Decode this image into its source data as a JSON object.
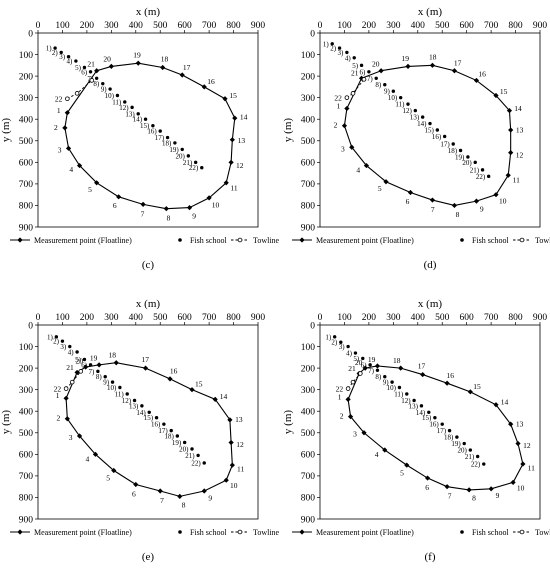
{
  "figure": {
    "x_axis_label": "x (m)",
    "y_axis_label": "y (m)",
    "legend": {
      "floatline": "Measurement point (Floatline)",
      "fish": "Fish school",
      "towline": "Towline"
    },
    "colors": {
      "ink": "#000000",
      "background": "#ffffff"
    }
  },
  "chart_data": [
    {
      "type": "scatter",
      "panel_label": "(c)",
      "xlim": [
        0,
        900
      ],
      "ylim": [
        900,
        0
      ],
      "x_ticks_step": 100,
      "y_ticks_step": 100,
      "legend_position": "bottom",
      "series": [
        {
          "name": "Measurement point (Floatline)",
          "style": "solid-line-diamond",
          "labels": [
            "1",
            "2",
            "3",
            "4",
            "5",
            "6",
            "7",
            "8",
            "9",
            "10",
            "11",
            "12",
            "13",
            "14",
            "15",
            "16",
            "17",
            "18",
            "19",
            "20",
            "21"
          ],
          "x": [
            120,
            110,
            125,
            170,
            240,
            330,
            430,
            525,
            620,
            700,
            770,
            790,
            795,
            805,
            765,
            680,
            590,
            510,
            410,
            300,
            240
          ],
          "y": [
            370,
            440,
            535,
            615,
            695,
            760,
            795,
            815,
            810,
            765,
            695,
            600,
            495,
            395,
            305,
            250,
            195,
            160,
            140,
            155,
            175
          ]
        },
        {
          "name": "Fish school",
          "style": "filled-circle",
          "labels": [
            "1)",
            "2)",
            "3)",
            "4)",
            "5)",
            "6)",
            "7)",
            "8)",
            "9)",
            "10)",
            "11)",
            "12)",
            "13)",
            "14)",
            "15)",
            "16)",
            "17)",
            "18)",
            "19)",
            "20)",
            "21)",
            "22)"
          ],
          "x": [
            70,
            95,
            125,
            155,
            190,
            215,
            240,
            265,
            295,
            325,
            355,
            385,
            410,
            440,
            470,
            500,
            530,
            560,
            590,
            615,
            645,
            670
          ],
          "y": [
            70,
            90,
            110,
            130,
            160,
            180,
            210,
            235,
            260,
            290,
            320,
            345,
            375,
            400,
            430,
            455,
            485,
            510,
            540,
            570,
            600,
            625
          ]
        },
        {
          "name": "Towline",
          "style": "dashed-line-open-circle",
          "labels": [
            "22",
            "",
            ""
          ],
          "x": [
            120,
            160,
            220
          ],
          "y": [
            305,
            280,
            220
          ]
        }
      ]
    },
    {
      "type": "scatter",
      "panel_label": "(d)",
      "xlim": [
        0,
        900
      ],
      "ylim": [
        900,
        0
      ],
      "x_ticks_step": 100,
      "y_ticks_step": 100,
      "legend_position": "bottom",
      "series": [
        {
          "name": "Measurement point (Floatline)",
          "style": "solid-line-diamond",
          "labels": [
            "1",
            "2",
            "3",
            "4",
            "5",
            "6",
            "7",
            "8",
            "9",
            "10",
            "11",
            "12",
            "13",
            "14",
            "15",
            "16",
            "17",
            "18",
            "19",
            "20",
            "21"
          ],
          "x": [
            110,
            100,
            130,
            190,
            270,
            370,
            460,
            550,
            640,
            720,
            770,
            780,
            780,
            775,
            720,
            640,
            550,
            460,
            360,
            250,
            170
          ],
          "y": [
            350,
            430,
            530,
            615,
            690,
            740,
            775,
            800,
            780,
            750,
            660,
            555,
            450,
            360,
            290,
            220,
            175,
            150,
            155,
            175,
            210
          ]
        },
        {
          "name": "Fish school",
          "style": "filled-circle",
          "labels": [
            "1)",
            "2)",
            "3)",
            "4)",
            "5)",
            "6)",
            "7)",
            "8)",
            "9)",
            "10)",
            "11)",
            "12)",
            "13)",
            "14)",
            "15)",
            "16)",
            "17)",
            "18)",
            "19)",
            "20)",
            "21)",
            "22)"
          ],
          "x": [
            50,
            80,
            110,
            140,
            170,
            200,
            230,
            265,
            300,
            330,
            360,
            390,
            420,
            450,
            480,
            510,
            545,
            575,
            605,
            635,
            665,
            690
          ],
          "y": [
            50,
            70,
            90,
            115,
            150,
            180,
            210,
            240,
            270,
            300,
            330,
            360,
            390,
            420,
            450,
            480,
            515,
            545,
            575,
            600,
            635,
            665
          ]
        },
        {
          "name": "Towline",
          "style": "dashed-line-open-circle",
          "labels": [
            "22",
            "",
            ""
          ],
          "x": [
            110,
            135,
            180
          ],
          "y": [
            300,
            280,
            215
          ]
        }
      ]
    },
    {
      "type": "scatter",
      "panel_label": "(e)",
      "xlim": [
        0,
        900
      ],
      "ylim": [
        900,
        0
      ],
      "x_ticks_step": 100,
      "y_ticks_step": 100,
      "legend_position": "bottom",
      "series": [
        {
          "name": "Measurement point (Floatline)",
          "style": "solid-line-diamond",
          "labels": [
            "1",
            "2",
            "3",
            "4",
            "5",
            "6",
            "7",
            "8",
            "9",
            "10",
            "11",
            "12",
            "13",
            "14",
            "15",
            "16",
            "17",
            "18",
            "19",
            "20",
            "21"
          ],
          "x": [
            115,
            120,
            170,
            235,
            310,
            400,
            500,
            580,
            680,
            770,
            795,
            790,
            785,
            725,
            630,
            540,
            440,
            320,
            250,
            195,
            160
          ],
          "y": [
            340,
            435,
            515,
            600,
            675,
            740,
            770,
            795,
            770,
            720,
            650,
            545,
            440,
            345,
            300,
            250,
            200,
            175,
            185,
            195,
            220
          ]
        },
        {
          "name": "Fish school",
          "style": "filled-circle",
          "labels": [
            "1)",
            "2)",
            "3)",
            "4)",
            "5)",
            "6)",
            "7)",
            "8)",
            "9)",
            "10)",
            "11)",
            "12)",
            "13)",
            "14)",
            "15)",
            "16)",
            "17)",
            "18)",
            "19)",
            "20)",
            "21)",
            "22)"
          ],
          "x": [
            75,
            100,
            130,
            160,
            190,
            215,
            245,
            275,
            305,
            335,
            365,
            395,
            425,
            455,
            485,
            515,
            545,
            570,
            600,
            630,
            655,
            680
          ],
          "y": [
            55,
            75,
            100,
            125,
            160,
            185,
            215,
            240,
            265,
            290,
            320,
            350,
            375,
            405,
            430,
            460,
            490,
            515,
            545,
            575,
            605,
            640
          ]
        },
        {
          "name": "Towline",
          "style": "dashed-line-open-circle",
          "labels": [
            "22",
            "",
            ""
          ],
          "x": [
            115,
            140,
            175
          ],
          "y": [
            295,
            265,
            215
          ]
        }
      ]
    },
    {
      "type": "scatter",
      "panel_label": "(f)",
      "xlim": [
        0,
        900
      ],
      "ylim": [
        900,
        0
      ],
      "x_ticks_step": 100,
      "y_ticks_step": 100,
      "legend_position": "bottom",
      "series": [
        {
          "name": "Measurement point (Floatline)",
          "style": "solid-line-diamond",
          "labels": [
            "1",
            "2",
            "3",
            "4",
            "5",
            "6",
            "7",
            "8",
            "9",
            "10",
            "11",
            "12",
            "13",
            "14",
            "15",
            "16",
            "17",
            "18",
            "19",
            "20",
            "21"
          ],
          "x": [
            115,
            125,
            180,
            265,
            355,
            440,
            520,
            610,
            700,
            790,
            830,
            810,
            780,
            720,
            615,
            520,
            420,
            330,
            235,
            185,
            160
          ],
          "y": [
            345,
            425,
            500,
            580,
            650,
            710,
            750,
            765,
            760,
            730,
            645,
            550,
            460,
            370,
            310,
            270,
            230,
            200,
            190,
            200,
            225
          ]
        },
        {
          "name": "Fish school",
          "style": "filled-circle",
          "labels": [
            "1)",
            "2)",
            "3)",
            "4)",
            "5)",
            "6)",
            "7)",
            "8)",
            "9)",
            "10)",
            "11)",
            "12)",
            "13)",
            "14)",
            "15)",
            "16)",
            "17)",
            "18)",
            "19)",
            "20)",
            "21)",
            "22)"
          ],
          "x": [
            60,
            85,
            115,
            145,
            175,
            205,
            235,
            265,
            295,
            325,
            355,
            385,
            415,
            445,
            470,
            500,
            530,
            560,
            590,
            615,
            645,
            670
          ],
          "y": [
            55,
            80,
            100,
            130,
            155,
            185,
            210,
            240,
            265,
            290,
            320,
            350,
            375,
            405,
            430,
            460,
            490,
            520,
            550,
            580,
            610,
            645
          ]
        },
        {
          "name": "Towline",
          "style": "dashed-line-open-circle",
          "labels": [
            "22",
            "",
            ""
          ],
          "x": [
            115,
            135,
            165
          ],
          "y": [
            295,
            265,
            225
          ]
        }
      ]
    }
  ]
}
